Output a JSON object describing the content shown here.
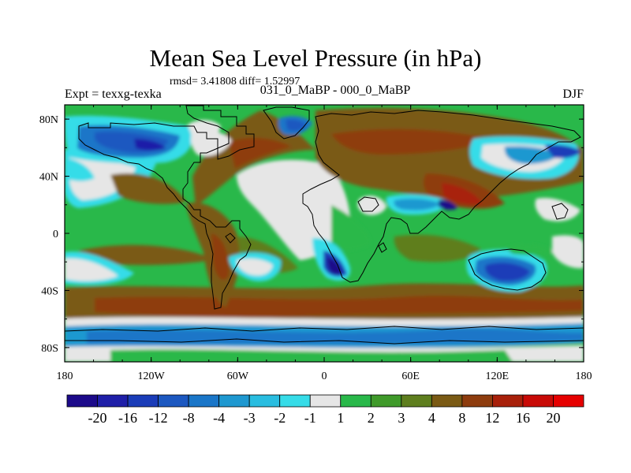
{
  "title": "Mean Sea Level Pressure (in hPa)",
  "stats": "rmsd= 3.41808 diff= 1.52997",
  "left_label": "Expt = texxg-texka",
  "subtitle": "031_0_MaBP - 000_0_MaBP",
  "right_label": "DJF",
  "x_ticks": [
    "180",
    "120W",
    "60W",
    "0",
    "60E",
    "120E",
    "180"
  ],
  "y_ticks": [
    "80N",
    "40N",
    "0",
    "40S",
    "80S"
  ],
  "colorbar": {
    "labels": [
      "-20",
      "-16",
      "-12",
      "-8",
      "-4",
      "-3",
      "-2",
      "-1",
      "1",
      "2",
      "3",
      "4",
      "8",
      "12",
      "16",
      "20"
    ],
    "colors": [
      "#1c0a8a",
      "#1f1fa8",
      "#1a3cb8",
      "#1c58c0",
      "#1a76c8",
      "#1e98d0",
      "#29bde0",
      "#36dce8",
      "#e6e6e6",
      "#29b84a",
      "#3f9a2a",
      "#5e7e1e",
      "#7a5a14",
      "#8e3c0e",
      "#a8200a",
      "#c80a06",
      "#e60000"
    ]
  },
  "legend_colors": {
    "land_outline": "#000000",
    "background": "#ffffff"
  }
}
